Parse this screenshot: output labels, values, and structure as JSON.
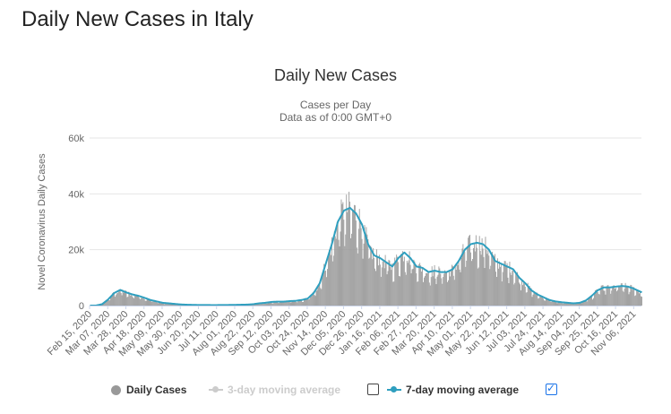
{
  "page": {
    "title": "Daily New Cases in Italy"
  },
  "colors": {
    "bars": "#999999",
    "line": "#2f9fbf",
    "grid": "#e6e6e6",
    "disabled": "#cccccc",
    "checkbox": "#1a73e8"
  },
  "legend": {
    "daily_cases": "Daily Cases",
    "three_day": "3-day moving average",
    "seven_day": "7-day moving average",
    "three_day_checked": false,
    "seven_day_checked": true
  },
  "chart_data": {
    "type": "bar",
    "title": "Daily New Cases",
    "subtitle": "Cases per Day",
    "subtitle2": "Data as of 0:00 GMT+0",
    "ylabel": "Novel Coronavirus Daily Cases",
    "xlabel": "",
    "ylim": [
      0,
      60000
    ],
    "yticks": [
      0,
      20000,
      40000,
      60000
    ],
    "ytick_labels": [
      "0",
      "20k",
      "40k",
      "60k"
    ],
    "x_start": "2020-02-15",
    "x_end": "2021-11-15",
    "x_tick_labels": [
      "Feb 15, 2020",
      "Mar 07, 2020",
      "Mar 28, 2020",
      "Apr 18, 2020",
      "May 09, 2020",
      "May 30, 2020",
      "Jun 20, 2020",
      "Jul 11, 2020",
      "Aug 01, 2020",
      "Aug 22, 2020",
      "Sep 12, 2020",
      "Oct 03, 2020",
      "Oct 24, 2020",
      "Nov 14, 2020",
      "Dec 05, 2020",
      "Dec 26, 2020",
      "Jan 16, 2021",
      "Feb 06, 2021",
      "Feb 27, 2021",
      "Mar 20, 2021",
      "Apr 10, 2021",
      "May 01, 2021",
      "May 22, 2021",
      "Jun 12, 2021",
      "Jul 03, 2021",
      "Jul 24, 2021",
      "Aug 14, 2021",
      "Sep 04, 2021",
      "Sep 25, 2021",
      "Oct 16, 2021",
      "Nov 06, 2021"
    ],
    "series": [
      {
        "name": "Daily Cases",
        "kind": "bar",
        "color": "#999999",
        "weekly_values": [
          0,
          10,
          500,
          2200,
          4500,
          5600,
          4700,
          4000,
          3500,
          2800,
          2000,
          1500,
          1000,
          800,
          600,
          400,
          300,
          250,
          200,
          200,
          180,
          180,
          200,
          220,
          250,
          300,
          350,
          500,
          800,
          1000,
          1300,
          1400,
          1400,
          1600,
          1700,
          2000,
          2500,
          4500,
          8000,
          15000,
          22000,
          30000,
          34000,
          35000,
          33000,
          29000,
          22000,
          18000,
          17000,
          15500,
          14000,
          17000,
          19000,
          17000,
          14000,
          13500,
          12000,
          12500,
          12000,
          12000,
          13000,
          16000,
          20000,
          22000,
          22500,
          22000,
          20000,
          16000,
          15000,
          14000,
          13000,
          10000,
          8000,
          5500,
          4000,
          3000,
          2000,
          1500,
          1200,
          1000,
          800,
          1000,
          1800,
          3500,
          5500,
          6500,
          6500,
          6800,
          7000,
          6800,
          6000,
          5000,
          4200,
          3500,
          3000,
          2800,
          2800,
          3200,
          4000,
          5000,
          6500,
          8500
        ]
      },
      {
        "name": "7-day moving average",
        "kind": "line",
        "color": "#2f9fbf",
        "weekly_values": [
          0,
          10,
          500,
          2200,
          4500,
          5600,
          4700,
          4000,
          3500,
          2800,
          2000,
          1500,
          1000,
          800,
          600,
          400,
          300,
          250,
          200,
          200,
          180,
          180,
          200,
          220,
          250,
          300,
          350,
          500,
          800,
          1000,
          1300,
          1400,
          1400,
          1600,
          1700,
          2000,
          2500,
          4500,
          8000,
          15000,
          22000,
          30000,
          34000,
          35000,
          33000,
          29000,
          22000,
          18000,
          17000,
          15500,
          14000,
          17000,
          19000,
          17000,
          14000,
          13500,
          12000,
          12500,
          12000,
          12000,
          13000,
          16000,
          20000,
          22000,
          22500,
          22000,
          20000,
          16000,
          15000,
          14000,
          13000,
          10000,
          8000,
          5500,
          4000,
          3000,
          2000,
          1500,
          1200,
          1000,
          800,
          1000,
          1800,
          3500,
          5500,
          6500,
          6500,
          6800,
          7000,
          6800,
          6000,
          5000,
          4200,
          3500,
          3000,
          2800,
          2800,
          3200,
          4000,
          5000,
          6500,
          8500
        ]
      }
    ]
  }
}
